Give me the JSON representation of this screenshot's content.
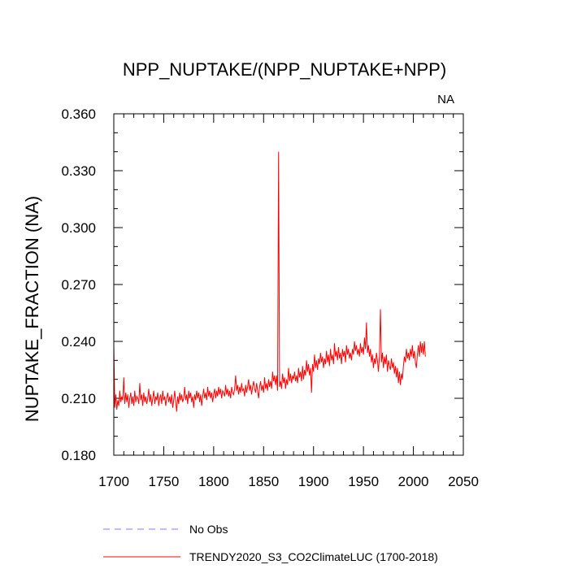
{
  "chart_data": {
    "type": "line",
    "title": "NPP_NUPTAKE/(NPP_NUPTAKE+NPP)",
    "corner_label": "NA",
    "xlabel": "",
    "ylabel": "NUPTAKE_FRACTION  (NA)",
    "xlim": [
      1700,
      2050
    ],
    "ylim": [
      0.18,
      0.36
    ],
    "x_ticks": [
      1700,
      1750,
      1800,
      1850,
      1900,
      1950,
      2000,
      2050
    ],
    "x_tick_labels": [
      "1700",
      "1750",
      "1800",
      "1850",
      "1900",
      "1950",
      "2000",
      "2050"
    ],
    "y_ticks": [
      0.18,
      0.21,
      0.24,
      0.27,
      0.3,
      0.33,
      0.36
    ],
    "y_tick_labels": [
      "0.180",
      "0.210",
      "0.240",
      "0.270",
      "0.300",
      "0.330",
      "0.360"
    ],
    "grid": false,
    "legend": [
      {
        "label": "No Obs",
        "color": "#7b7bff",
        "style": "dashed"
      },
      {
        "label": "TRENDY2020_S3_CO2ClimateLUC (1700-2018)",
        "color": "#ff0000",
        "style": "solid"
      }
    ],
    "series": [
      {
        "name": "TRENDY2020_S3_CO2ClimateLUC (1700-2018)",
        "color": "#ff0000",
        "x_start": 1700,
        "x_step": 1,
        "values": [
          0.238,
          0.205,
          0.212,
          0.204,
          0.209,
          0.206,
          0.214,
          0.208,
          0.211,
          0.209,
          0.221,
          0.207,
          0.213,
          0.208,
          0.212,
          0.205,
          0.21,
          0.213,
          0.207,
          0.211,
          0.206,
          0.214,
          0.208,
          0.211,
          0.21,
          0.207,
          0.218,
          0.209,
          0.212,
          0.206,
          0.213,
          0.208,
          0.211,
          0.207,
          0.21,
          0.215,
          0.208,
          0.212,
          0.206,
          0.21,
          0.214,
          0.207,
          0.211,
          0.209,
          0.213,
          0.206,
          0.21,
          0.212,
          0.207,
          0.214,
          0.209,
          0.211,
          0.206,
          0.21,
          0.213,
          0.208,
          0.211,
          0.207,
          0.212,
          0.205,
          0.209,
          0.214,
          0.208,
          0.203,
          0.211,
          0.207,
          0.213,
          0.209,
          0.212,
          0.208,
          0.21,
          0.216,
          0.209,
          0.212,
          0.207,
          0.214,
          0.21,
          0.213,
          0.208,
          0.211,
          0.205,
          0.212,
          0.209,
          0.214,
          0.21,
          0.213,
          0.208,
          0.212,
          0.206,
          0.211,
          0.215,
          0.21,
          0.213,
          0.209,
          0.216,
          0.211,
          0.214,
          0.21,
          0.213,
          0.208,
          0.212,
          0.215,
          0.21,
          0.214,
          0.211,
          0.216,
          0.212,
          0.215,
          0.21,
          0.214,
          0.213,
          0.211,
          0.217,
          0.212,
          0.215,
          0.211,
          0.214,
          0.21,
          0.216,
          0.213,
          0.212,
          0.215,
          0.222,
          0.214,
          0.217,
          0.212,
          0.216,
          0.213,
          0.218,
          0.214,
          0.215,
          0.211,
          0.217,
          0.213,
          0.216,
          0.22,
          0.214,
          0.217,
          0.212,
          0.216,
          0.219,
          0.215,
          0.213,
          0.218,
          0.214,
          0.21,
          0.216,
          0.219,
          0.214,
          0.217,
          0.213,
          0.221,
          0.215,
          0.218,
          0.214,
          0.22,
          0.216,
          0.219,
          0.215,
          0.224,
          0.219,
          0.222,
          0.217,
          0.222,
          0.214,
          0.34,
          0.216,
          0.219,
          0.215,
          0.223,
          0.218,
          0.221,
          0.215,
          0.22,
          0.217,
          0.226,
          0.219,
          0.223,
          0.218,
          0.222,
          0.22,
          0.224,
          0.219,
          0.222,
          0.218,
          0.226,
          0.221,
          0.224,
          0.219,
          0.227,
          0.22,
          0.225,
          0.222,
          0.23,
          0.224,
          0.228,
          0.222,
          0.226,
          0.213,
          0.228,
          0.224,
          0.233,
          0.226,
          0.23,
          0.225,
          0.231,
          0.228,
          0.234,
          0.229,
          0.232,
          0.226,
          0.231,
          0.228,
          0.235,
          0.229,
          0.233,
          0.227,
          0.236,
          0.23,
          0.233,
          0.228,
          0.239,
          0.232,
          0.235,
          0.23,
          0.237,
          0.231,
          0.234,
          0.228,
          0.236,
          0.232,
          0.235,
          0.229,
          0.238,
          0.233,
          0.236,
          0.231,
          0.234,
          0.23,
          0.236,
          0.233,
          0.24,
          0.235,
          0.238,
          0.233,
          0.236,
          0.232,
          0.239,
          0.234,
          0.237,
          0.233,
          0.242,
          0.236,
          0.25,
          0.234,
          0.238,
          0.232,
          0.236,
          0.229,
          0.233,
          0.226,
          0.231,
          0.228,
          0.234,
          0.23,
          0.224,
          0.232,
          0.257,
          0.229,
          0.234,
          0.226,
          0.232,
          0.228,
          0.233,
          0.224,
          0.23,
          0.227,
          0.225,
          0.231,
          0.226,
          0.229,
          0.223,
          0.227,
          0.221,
          0.226,
          0.218,
          0.224,
          0.217,
          0.223,
          0.22,
          0.227,
          0.232,
          0.229,
          0.236,
          0.231,
          0.234,
          0.23,
          0.236,
          0.232,
          0.238,
          0.231,
          0.235,
          0.229,
          0.226,
          0.233,
          0.238,
          0.232,
          0.24,
          0.234,
          0.239,
          0.233,
          0.24,
          0.232
        ]
      }
    ]
  }
}
